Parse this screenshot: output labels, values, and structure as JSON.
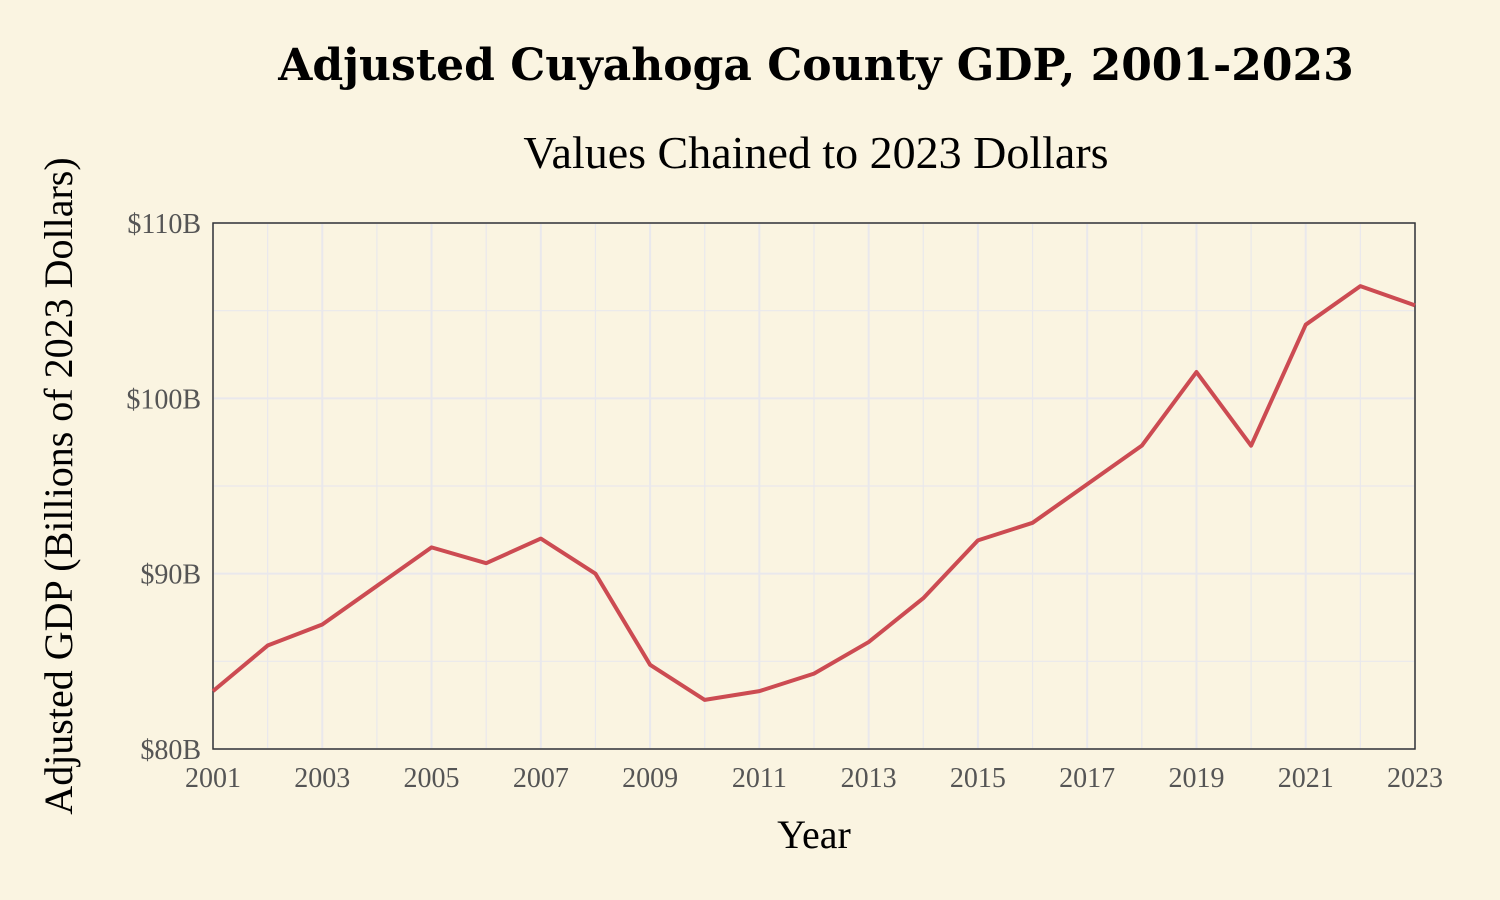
{
  "chart_data": {
    "type": "line",
    "title": "Adjusted Cuyahoga County GDP, 2001-2023",
    "subtitle": "Values Chained to 2023 Dollars",
    "xlabel": "Year",
    "ylabel": "Adjusted GDP (Billions of 2023 Dollars)",
    "xlim": [
      2001,
      2023
    ],
    "ylim": [
      80,
      110
    ],
    "grid": true,
    "x_ticks": [
      2001,
      2003,
      2005,
      2007,
      2009,
      2011,
      2013,
      2015,
      2017,
      2019,
      2021,
      2023
    ],
    "x_tick_labels": [
      "2001",
      "2003",
      "2005",
      "2007",
      "2009",
      "2011",
      "2013",
      "2015",
      "2017",
      "2019",
      "2021",
      "2023"
    ],
    "y_ticks": [
      80,
      90,
      100,
      110
    ],
    "y_tick_labels": [
      "$80B",
      "$90B",
      "$100B",
      "$110B"
    ],
    "series": [
      {
        "name": "Adjusted GDP",
        "color": "#cc4b52",
        "x": [
          2001,
          2002,
          2003,
          2004,
          2005,
          2006,
          2007,
          2008,
          2009,
          2010,
          2011,
          2012,
          2013,
          2014,
          2015,
          2016,
          2017,
          2018,
          2019,
          2020,
          2021,
          2022,
          2023
        ],
        "values": [
          83.3,
          85.9,
          87.1,
          89.3,
          91.5,
          90.6,
          92.0,
          90.0,
          84.8,
          82.8,
          83.3,
          84.3,
          86.1,
          88.6,
          91.9,
          92.9,
          95.1,
          97.3,
          101.5,
          97.3,
          104.2,
          106.4,
          105.3
        ]
      }
    ]
  }
}
